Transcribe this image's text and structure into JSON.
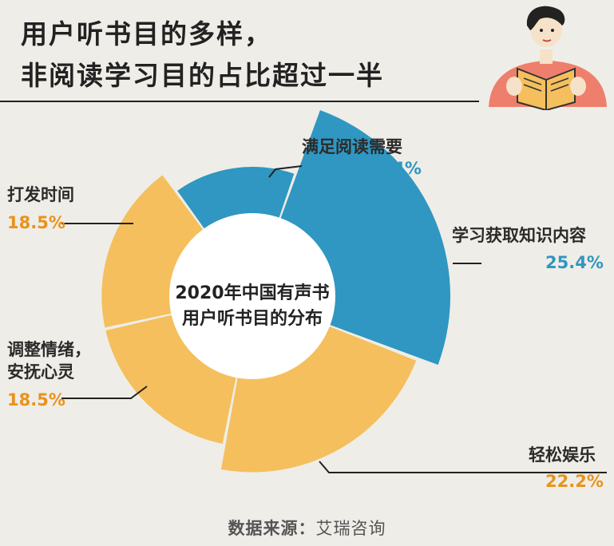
{
  "title": {
    "line1": "用户听书目的多样，",
    "line2": "非阅读学习目的占比超过一半"
  },
  "colors": {
    "reading_learning": "#2f97c1",
    "other": "#f4bf5c",
    "blue_text": "#2f97c1",
    "orange_text": "#e9921d"
  },
  "icon": "person-reading-book-icon",
  "chart_data": {
    "type": "pie",
    "variant": "rose-donut",
    "center_label": [
      "2020年中国有声书",
      "用户听书目的分布"
    ],
    "categories": [
      "满足阅读需要",
      "学习获取知识内容",
      "轻松娱乐",
      "调整情绪，安抚心灵",
      "打发时间"
    ],
    "values": [
      15.4,
      25.4,
      22.2,
      18.5,
      18.5
    ],
    "value_labels": [
      "15.4%",
      "25.4%",
      "22.2%",
      "18.5%",
      "18.5%"
    ],
    "series_colors": [
      "#2f97c1",
      "#2f97c1",
      "#f4bf5c",
      "#f4bf5c",
      "#f4bf5c"
    ]
  },
  "labels": {
    "reading": {
      "name": "满足阅读需要",
      "pct": "15.4%"
    },
    "learning": {
      "name": "学习获取知识内容",
      "pct": "25.4%"
    },
    "entertain": {
      "name": "轻松娱乐",
      "pct": "22.2%"
    },
    "emotion": {
      "name_line1": "调整情绪，",
      "name_line2": "安抚心灵",
      "pct": "18.5%"
    },
    "pastime": {
      "name": "打发时间",
      "pct": "18.5%"
    }
  },
  "source": {
    "prefix": "数据来源：",
    "name": "艾瑞咨询"
  }
}
